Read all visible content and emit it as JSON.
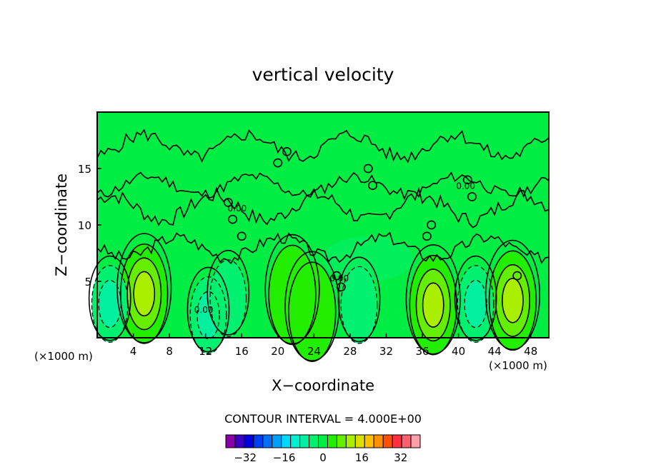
{
  "chart_data": {
    "type": "heatmap",
    "title": "vertical velocity",
    "xlabel": "X−coordinate",
    "ylabel": "Z−coordinate",
    "x_units_left": "(×1000 m)",
    "x_units_right": "(×1000 m)",
    "xlim": [
      0,
      50
    ],
    "ylim": [
      0,
      20
    ],
    "x_ticks": [
      4,
      8,
      12,
      16,
      20,
      24,
      28,
      32,
      36,
      40,
      44,
      48
    ],
    "x_tick_labels": [
      "4",
      "8",
      "12",
      "16",
      "20",
      "24",
      "28",
      "32",
      "36",
      "40",
      "44",
      "48"
    ],
    "y_ticks": [
      5,
      10,
      15
    ],
    "y_tick_labels": [
      "5",
      "10",
      "15"
    ],
    "contour_interval_label": "CONTOUR INTERVAL = 4.000E+00",
    "contour_label_text": "0.00",
    "colorbar": {
      "min": -40,
      "max": 40,
      "step": 4,
      "tick_values": [
        -32,
        -16,
        0,
        16,
        32
      ],
      "tick_labels": [
        "−32",
        "−16",
        "0",
        "16",
        "32"
      ],
      "colors": [
        "#8a00a8",
        "#3c00c0",
        "#0000e0",
        "#0040f0",
        "#0070f8",
        "#00a0ff",
        "#00d8ff",
        "#00f0d0",
        "#00f0a0",
        "#00f070",
        "#00ee44",
        "#22ee00",
        "#66ee00",
        "#aaee00",
        "#dddd00",
        "#ffc000",
        "#ff9000",
        "#ff5000",
        "#ff3040",
        "#ff6070",
        "#ffa0a8"
      ]
    },
    "updrafts": [
      {
        "x": 5.2,
        "z": 3.9,
        "peak": 14
      },
      {
        "x": 21.6,
        "z": 3.8,
        "peak": 6
      },
      {
        "x": 23.8,
        "z": 2.3,
        "peak": 5
      },
      {
        "x": 37.2,
        "z": 2.9,
        "peak": 12
      },
      {
        "x": 46.0,
        "z": 3.3,
        "peak": 13
      }
    ],
    "downdrafts": [
      {
        "x": 1.4,
        "z": 3.0,
        "peak": -7
      },
      {
        "x": 12.3,
        "z": 2.0,
        "peak": -6
      },
      {
        "x": 14.5,
        "z": 3.5,
        "peak": -4
      },
      {
        "x": 29.0,
        "z": 2.9,
        "peak": -4
      },
      {
        "x": 41.9,
        "z": 3.0,
        "peak": -6
      }
    ]
  }
}
